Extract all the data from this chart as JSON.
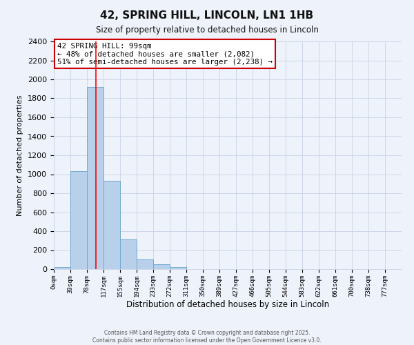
{
  "title": "42, SPRING HILL, LINCOLN, LN1 1HB",
  "subtitle": "Size of property relative to detached houses in Lincoln",
  "xlabel": "Distribution of detached houses by size in Lincoln",
  "ylabel": "Number of detached properties",
  "bar_labels": [
    "0sqm",
    "39sqm",
    "78sqm",
    "117sqm",
    "155sqm",
    "194sqm",
    "233sqm",
    "272sqm",
    "311sqm",
    "350sqm",
    "389sqm",
    "427sqm",
    "466sqm",
    "505sqm",
    "544sqm",
    "583sqm",
    "622sqm",
    "661sqm",
    "700sqm",
    "738sqm",
    "777sqm"
  ],
  "bar_values": [
    20,
    1030,
    1920,
    930,
    315,
    105,
    48,
    20,
    2,
    0,
    0,
    0,
    0,
    0,
    0,
    0,
    0,
    0,
    0,
    0,
    0
  ],
  "bar_color": "#b8d0ea",
  "bar_edge_color": "#6fa8d4",
  "red_line_x": 2.56,
  "annotation_title": "42 SPRING HILL: 99sqm",
  "annotation_line1": "← 48% of detached houses are smaller (2,082)",
  "annotation_line2": "51% of semi-detached houses are larger (2,238) →",
  "annotation_box_color": "#ffffff",
  "annotation_box_edge_color": "#cc0000",
  "ylim": [
    0,
    2400
  ],
  "yticks": [
    0,
    200,
    400,
    600,
    800,
    1000,
    1200,
    1400,
    1600,
    1800,
    2000,
    2200,
    2400
  ],
  "grid_color": "#c8d4e8",
  "background_color": "#eef2fa",
  "footer1": "Contains HM Land Registry data © Crown copyright and database right 2025.",
  "footer2": "Contains public sector information licensed under the Open Government Licence v3.0."
}
